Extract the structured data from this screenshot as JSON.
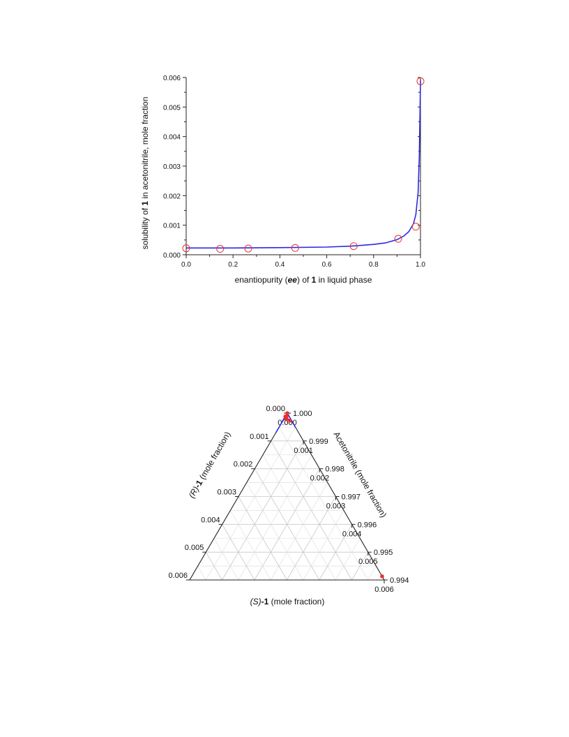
{
  "chart_data": [
    {
      "type": "scatter",
      "xlabel_parts": [
        "enantiopurity (",
        "ee",
        ") of ",
        "1",
        " in liquid phase"
      ],
      "ylabel_parts": [
        "solubility of ",
        "1",
        " in acetonitrile, mole fraction"
      ],
      "xlim": [
        0.0,
        1.0
      ],
      "ylim": [
        0.0,
        0.006
      ],
      "x_ticks": [
        "0.0",
        "0.2",
        "0.4",
        "0.6",
        "0.8",
        "1.0"
      ],
      "y_ticks": [
        "0.000",
        "0.001",
        "0.002",
        "0.003",
        "0.004",
        "0.005",
        "0.006"
      ],
      "grid": false,
      "series": [
        {
          "kind": "points",
          "color": "#e8312d",
          "marker": "open-circle",
          "x": [
            0.0,
            0.145,
            0.265,
            0.465,
            0.715,
            0.905,
            0.98,
            1.0
          ],
          "y": [
            0.00022,
            0.0002,
            0.00021,
            0.00023,
            0.00029,
            0.00054,
            0.00095,
            0.00587
          ]
        },
        {
          "kind": "fitted-curve",
          "color": "#2a2ae0",
          "x": [
            0.0,
            0.2,
            0.4,
            0.6,
            0.7,
            0.8,
            0.85,
            0.9,
            0.93,
            0.95,
            0.97,
            0.98,
            0.99,
            0.995,
            0.998,
            1.0
          ],
          "y": [
            0.00023,
            0.00023,
            0.00024,
            0.00026,
            0.00029,
            0.00035,
            0.0004,
            0.00051,
            0.00064,
            0.00078,
            0.00105,
            0.00135,
            0.0021,
            0.0033,
            0.0048,
            0.0059
          ]
        }
      ]
    },
    {
      "type": "ternary",
      "left_axis_label_parts": [
        "(R)",
        "-1",
        " (mole fraction)"
      ],
      "right_axis_label": "Acetonitrile (mole fraction)",
      "bottom_axis_label_parts": [
        "(S)",
        "-1",
        " (mole fraction)"
      ],
      "left_ticks": [
        "0.000",
        "0.001",
        "0.002",
        "0.003",
        "0.004",
        "0.005",
        "0.006"
      ],
      "right_ticks": [
        "1.000",
        "0.999",
        "0.998",
        "0.997",
        "0.996",
        "0.995",
        "0.994"
      ],
      "bottom_ticks": [
        "0.000",
        "0.001",
        "0.002",
        "0.003",
        "0.004",
        "0.005",
        "0.006"
      ],
      "grid": true,
      "points": {
        "color": "#e8312d",
        "marker": "filled-circle",
        "S": [
          0.0,
          0.0,
          4e-05,
          8e-05,
          0.00022,
          0.00587
        ],
        "R": [
          0.0,
          0.00012,
          8e-05,
          0.00014,
          5e-05,
          0.0
        ]
      },
      "curve": {
        "color": "#2a2ae0",
        "S": [
          0.0,
          0.0,
          5e-05,
          0.0001,
          0.00015,
          0.0002,
          0.00025,
          0.0003
        ],
        "R": [
          0.0003,
          0.0002,
          0.00015,
          0.0001,
          7e-05,
          4e-05,
          2e-05,
          0.0
        ]
      }
    }
  ]
}
